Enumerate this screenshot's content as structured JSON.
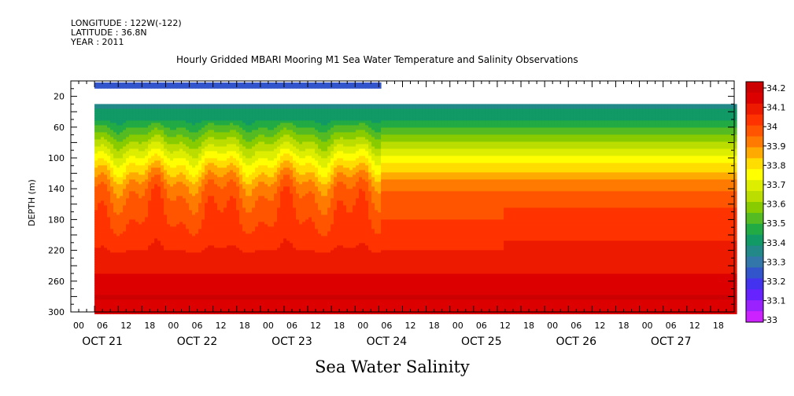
{
  "header": {
    "longitude": "LONGITUDE : 122W(-122)",
    "latitude": "LATITUDE : 36.8N",
    "year": "YEAR : 2011"
  },
  "chart_data": {
    "type": "heatmap",
    "title": "Hourly Gridded MBARI Mooring M1 Sea Water Temperature and Salinity Observations",
    "xlabel": "",
    "ylabel": "DEPTH (m)",
    "bottom_title": "Sea Water Salinity",
    "y_axis": {
      "label": "DEPTH (m)",
      "range": [
        0,
        300
      ],
      "inverted": true,
      "ticks": [
        20,
        60,
        100,
        140,
        180,
        220,
        260,
        300
      ]
    },
    "x_axis": {
      "hour_ticks": [
        "00",
        "06",
        "12",
        "18",
        "00",
        "06",
        "12",
        "18",
        "00",
        "06",
        "12",
        "18",
        "00",
        "06",
        "12",
        "18",
        "00",
        "06",
        "12",
        "18",
        "00",
        "06",
        "12",
        "18",
        "00",
        "06",
        "12",
        "18"
      ],
      "day_labels": [
        "OCT 21",
        "OCT 22",
        "OCT 23",
        "OCT 24",
        "OCT 25",
        "OCT 26",
        "OCT 27"
      ],
      "range_days": [
        0,
        7
      ]
    },
    "colorbar": {
      "min": 33,
      "max": 34.25,
      "labels": [
        "34.2",
        "34.1",
        "34",
        "33.9",
        "33.8",
        "33.7",
        "33.6",
        "33.5",
        "33.4",
        "33.3",
        "33.2",
        "33.1",
        "33"
      ],
      "colors": [
        "#cc0000",
        "#dd0000",
        "#ee1a00",
        "#ff3300",
        "#ff5500",
        "#ff7a00",
        "#ffaa00",
        "#ffdd00",
        "#ffff00",
        "#ddee00",
        "#bbdd00",
        "#88cc00",
        "#55bb22",
        "#22aa44",
        "#119966",
        "#228888",
        "#3377aa",
        "#3355cc",
        "#4433ee",
        "#6622ff",
        "#9922ff",
        "#cc22ff"
      ]
    },
    "depth_profiles": [
      {
        "depth": 10,
        "salinity": 33.27
      },
      {
        "depth": 40,
        "salinity": 33.42
      },
      {
        "depth": 50,
        "salinity": 33.46
      },
      {
        "depth": 60,
        "salinity": 33.52
      },
      {
        "depth": 70,
        "salinity": 33.58
      },
      {
        "depth": 80,
        "salinity": 33.64
      },
      {
        "depth": 90,
        "salinity": 33.7
      },
      {
        "depth": 100,
        "salinity": 33.76
      },
      {
        "depth": 110,
        "salinity": 33.82
      },
      {
        "depth": 120,
        "salinity": 33.87
      },
      {
        "depth": 130,
        "salinity": 33.92
      },
      {
        "depth": 140,
        "salinity": 33.96
      },
      {
        "depth": 160,
        "salinity": 34.0
      },
      {
        "depth": 200,
        "salinity": 34.05
      },
      {
        "depth": 230,
        "salinity": 34.1
      },
      {
        "depth": 245,
        "salinity": 34.13
      },
      {
        "depth": 260,
        "salinity": 34.17
      },
      {
        "depth": 280,
        "salinity": 34.2
      },
      {
        "depth": 290,
        "salinity": 34.16
      }
    ],
    "data_start_day": 0.25,
    "surface_end_day": 3.25,
    "deep_start_depth": 30
  }
}
